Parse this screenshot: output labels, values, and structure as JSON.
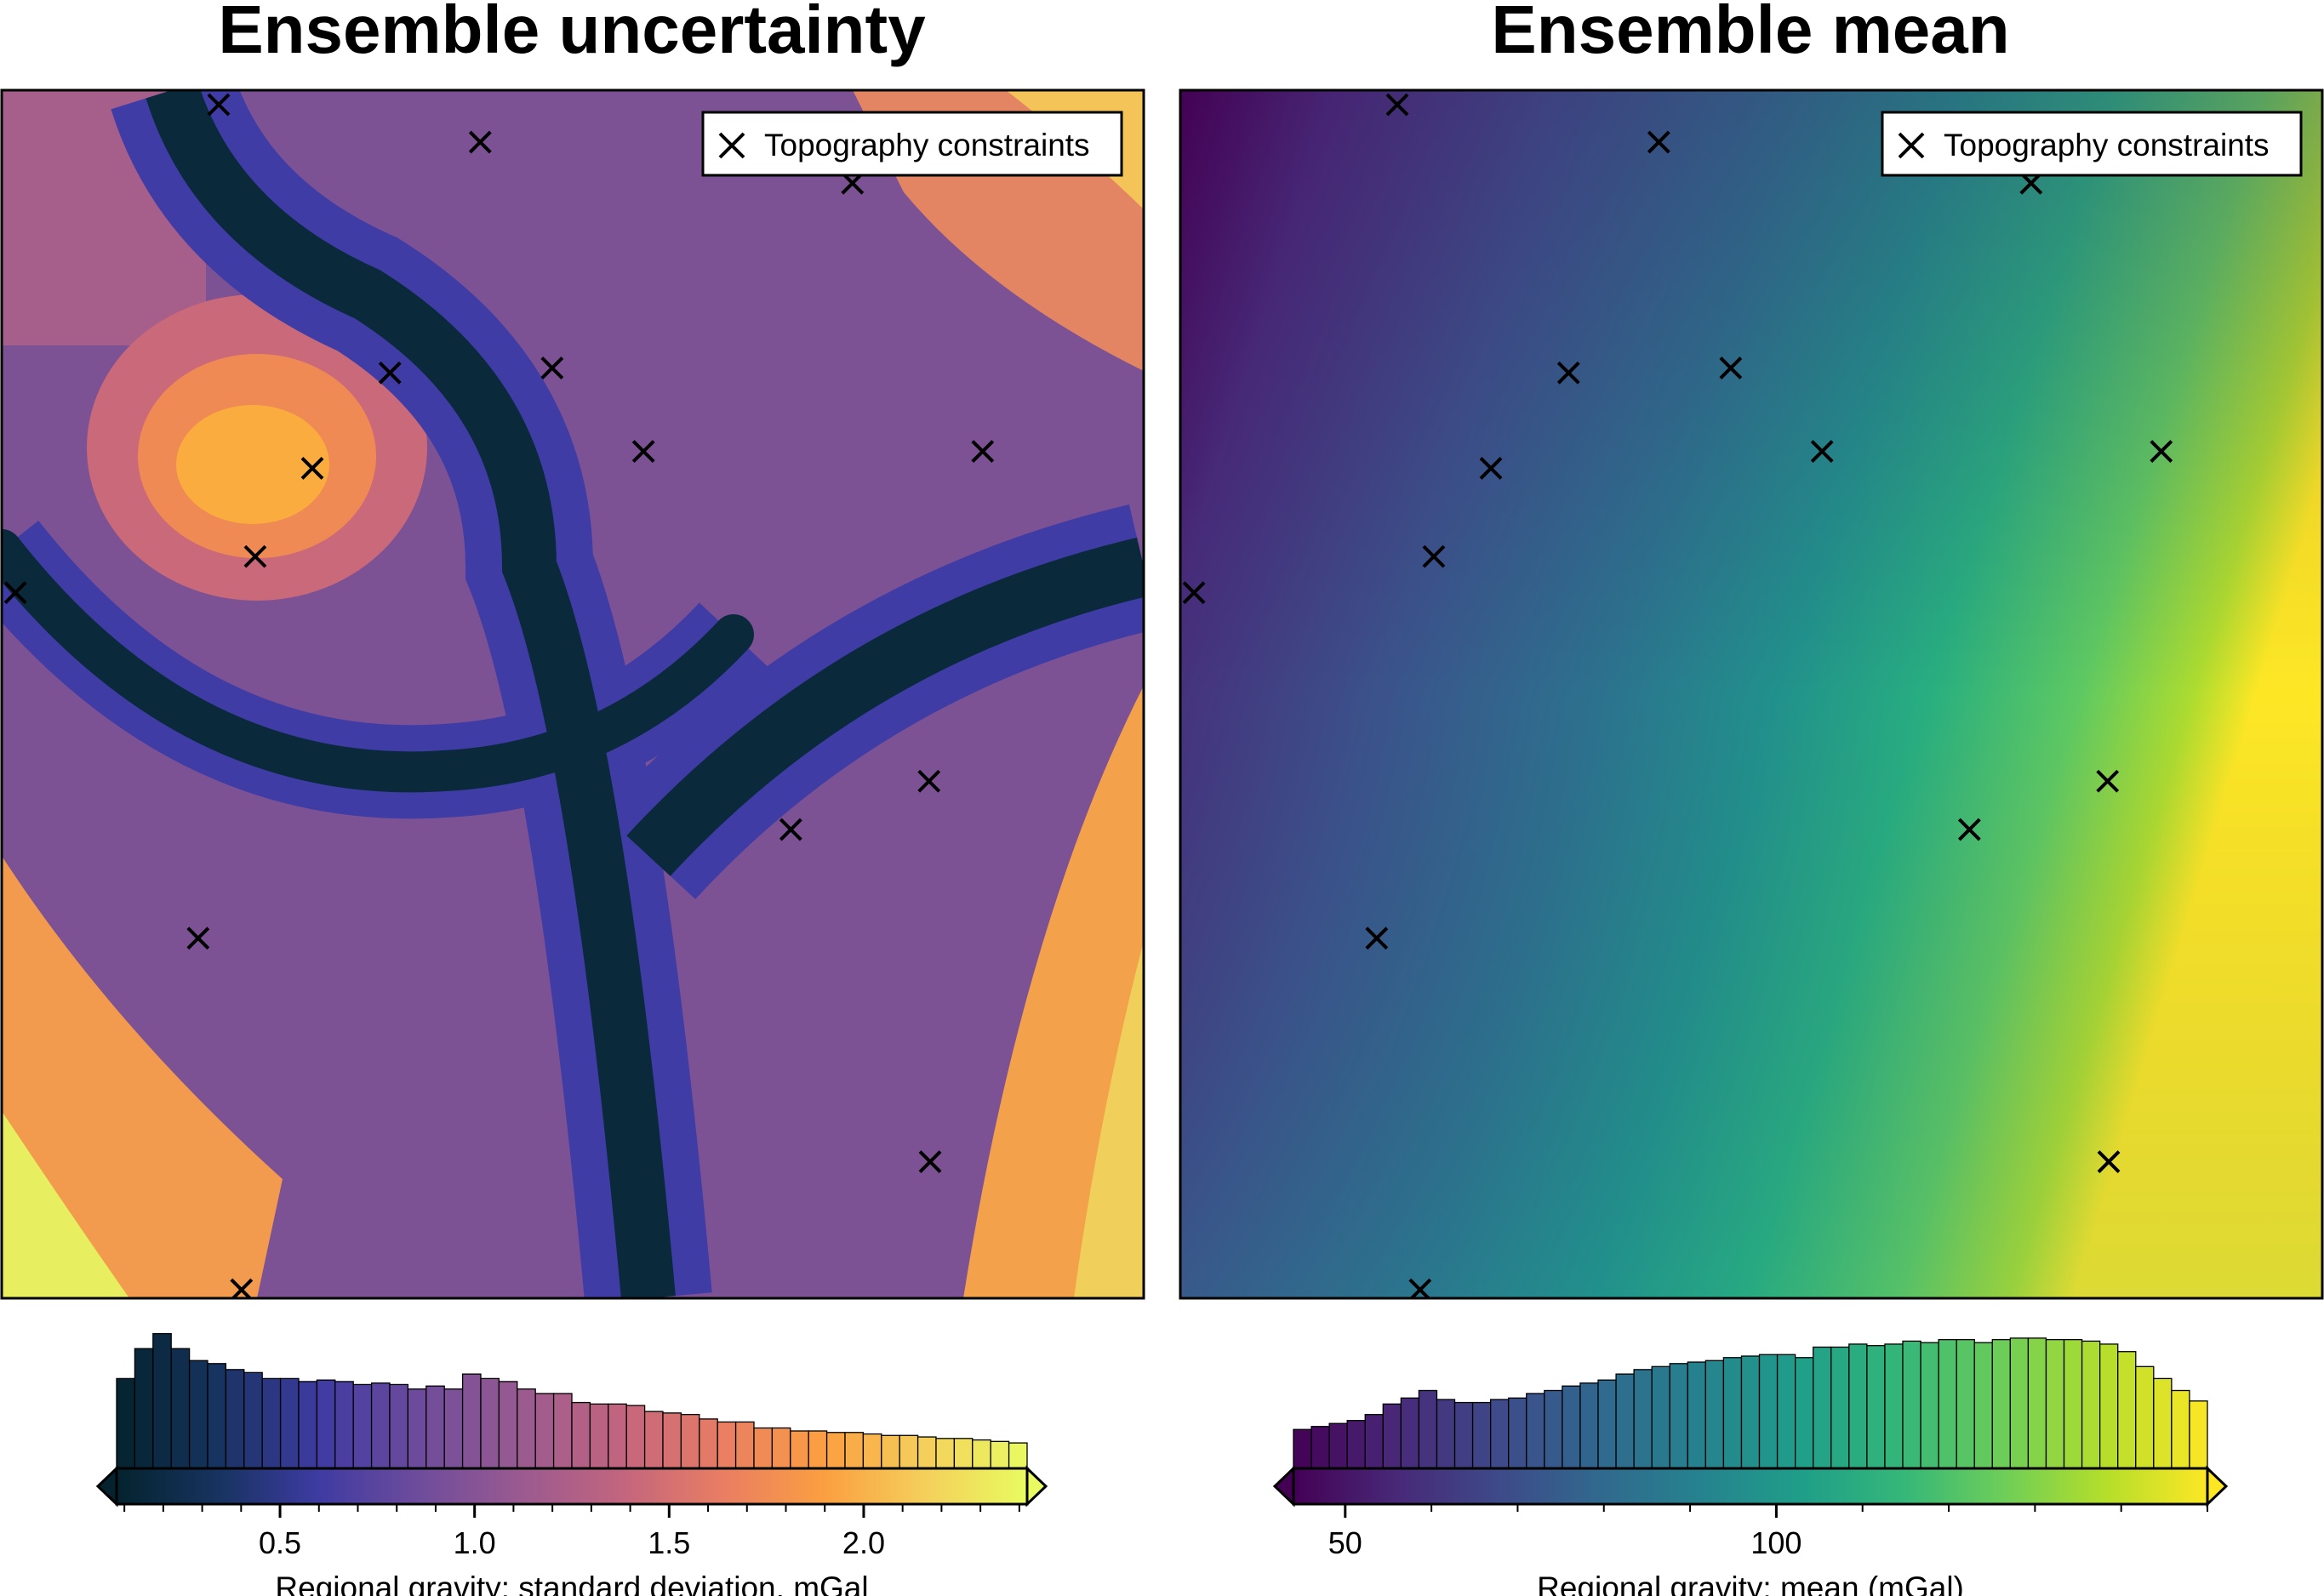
{
  "chart_data": [
    {
      "type": "heatmap",
      "title": "Ensemble uncertainty",
      "colormap": "thermal",
      "colormap_stops": [
        "#04232e",
        "#17335f",
        "#3e3ba2",
        "#6e4c9c",
        "#9a5a90",
        "#c3657e",
        "#e97e63",
        "#fb9f41",
        "#f4d05b",
        "#e9fb60"
      ],
      "legend": {
        "marker": "x",
        "label": "Topography constraints",
        "position": "top-right"
      },
      "constraints": [
        {
          "x": 0.19,
          "y": 0.988
        },
        {
          "x": 0.419,
          "y": 0.957
        },
        {
          "x": 0.745,
          "y": 0.923
        },
        {
          "x": 0.34,
          "y": 0.766
        },
        {
          "x": 0.482,
          "y": 0.77
        },
        {
          "x": 0.272,
          "y": 0.687
        },
        {
          "x": 0.562,
          "y": 0.701
        },
        {
          "x": 0.859,
          "y": 0.701
        },
        {
          "x": 0.222,
          "y": 0.614
        },
        {
          "x": 0.012,
          "y": 0.584
        },
        {
          "x": 0.812,
          "y": 0.428
        },
        {
          "x": 0.691,
          "y": 0.388
        },
        {
          "x": 0.172,
          "y": 0.298
        },
        {
          "x": 0.813,
          "y": 0.113
        },
        {
          "x": 0.21,
          "y": 0.007
        }
      ],
      "colorbar": {
        "label": "Regional gravity:  standard deviation, mGal",
        "range": [
          0.08,
          2.42
        ],
        "ticks": [
          0.5,
          1.0,
          1.5,
          2.0
        ],
        "tick_labels": [
          "0.5",
          "1.0",
          "1.5",
          "2.0"
        ],
        "minor_step": 0.1,
        "histogram": [
          0.6,
          0.8,
          0.9,
          0.8,
          0.72,
          0.7,
          0.66,
          0.64,
          0.6,
          0.6,
          0.58,
          0.59,
          0.58,
          0.56,
          0.57,
          0.56,
          0.53,
          0.55,
          0.53,
          0.63,
          0.6,
          0.58,
          0.53,
          0.5,
          0.5,
          0.44,
          0.43,
          0.43,
          0.42,
          0.38,
          0.37,
          0.36,
          0.33,
          0.31,
          0.31,
          0.27,
          0.27,
          0.25,
          0.25,
          0.24,
          0.24,
          0.23,
          0.22,
          0.22,
          0.21,
          0.2,
          0.2,
          0.19,
          0.18,
          0.17
        ]
      }
    },
    {
      "type": "heatmap",
      "title": "Ensemble mean",
      "colormap": "viridis",
      "colormap_stops": [
        "#440154",
        "#482878",
        "#3e4989",
        "#31688e",
        "#26828e",
        "#1f9e89",
        "#35b779",
        "#6ece58",
        "#b5de2b",
        "#fde725"
      ],
      "legend": {
        "marker": "x",
        "label": "Topography constraints",
        "position": "top-right"
      },
      "constraints": [
        {
          "x": 0.19,
          "y": 0.988
        },
        {
          "x": 0.419,
          "y": 0.957
        },
        {
          "x": 0.745,
          "y": 0.923
        },
        {
          "x": 0.34,
          "y": 0.766
        },
        {
          "x": 0.482,
          "y": 0.77
        },
        {
          "x": 0.272,
          "y": 0.687
        },
        {
          "x": 0.562,
          "y": 0.701
        },
        {
          "x": 0.859,
          "y": 0.701
        },
        {
          "x": 0.222,
          "y": 0.614
        },
        {
          "x": 0.012,
          "y": 0.584
        },
        {
          "x": 0.812,
          "y": 0.428
        },
        {
          "x": 0.691,
          "y": 0.388
        },
        {
          "x": 0.172,
          "y": 0.298
        },
        {
          "x": 0.813,
          "y": 0.113
        },
        {
          "x": 0.21,
          "y": 0.007
        }
      ],
      "colorbar": {
        "label": "Regional gravity:  mean (mGal)",
        "range": [
          44,
          150
        ],
        "ticks": [
          50,
          100
        ],
        "tick_labels": [
          "50",
          "100"
        ],
        "minor_step": 10,
        "histogram": [
          0.26,
          0.28,
          0.3,
          0.32,
          0.36,
          0.43,
          0.47,
          0.52,
          0.46,
          0.44,
          0.44,
          0.46,
          0.47,
          0.5,
          0.52,
          0.55,
          0.57,
          0.59,
          0.63,
          0.66,
          0.68,
          0.7,
          0.71,
          0.72,
          0.74,
          0.75,
          0.76,
          0.76,
          0.74,
          0.81,
          0.81,
          0.83,
          0.82,
          0.83,
          0.85,
          0.84,
          0.86,
          0.86,
          0.84,
          0.86,
          0.87,
          0.87,
          0.86,
          0.86,
          0.85,
          0.83,
          0.78,
          0.68,
          0.6,
          0.52,
          0.45
        ]
      }
    }
  ]
}
